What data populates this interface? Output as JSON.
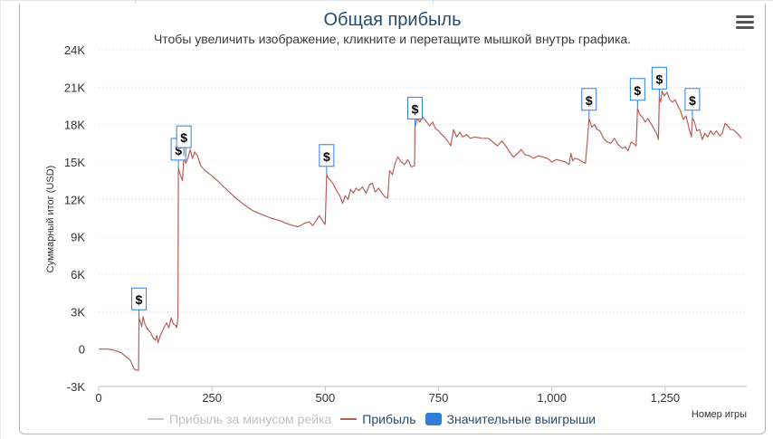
{
  "title": "Общая прибыль",
  "subtitle": "Чтобы увеличить изображение, кликните и перетащите мышкой внутрь графика.",
  "icons": {
    "menu": "hamburger-menu-icon",
    "marker": "dollar-sign"
  },
  "colors": {
    "profit": "#b5605c",
    "rake": "#c8c8c8",
    "wins": "#2f7ed8",
    "grid": "#d0d0d0",
    "title": "#274b6d",
    "marker_border": "#2f7ed8"
  },
  "chart_data": {
    "type": "line",
    "title": "Общая прибыль",
    "subtitle": "Чтобы увеличить изображение, кликните и перетащите мышкой внутрь графика.",
    "xlabel": "Номер игры",
    "ylabel": "Суммарный итог (USD)",
    "xlim": [
      0,
      1430
    ],
    "ylim": [
      -3000,
      24000
    ],
    "xticks": [
      0,
      250,
      500,
      750,
      1000,
      1250
    ],
    "xtick_labels": [
      "0",
      "250",
      "500",
      "750",
      "1,000",
      "1,250"
    ],
    "yticks": [
      -3000,
      0,
      3000,
      6000,
      9000,
      12000,
      15000,
      18000,
      21000,
      24000
    ],
    "ytick_labels": [
      "-3K",
      "0",
      "3K",
      "6K",
      "9K",
      "12K",
      "15K",
      "18K",
      "21K",
      "24K"
    ],
    "grid": true,
    "legend_position": "bottom",
    "legend": [
      {
        "name": "Прибыль за минусом рейка",
        "visible": false
      },
      {
        "name": "Прибыль",
        "visible": true
      },
      {
        "name": "Значительные выигрыши",
        "visible": true
      }
    ],
    "series": [
      {
        "name": "Прибыль",
        "points": [
          [
            0,
            0
          ],
          [
            10,
            0
          ],
          [
            20,
            0
          ],
          [
            30,
            -50
          ],
          [
            40,
            -150
          ],
          [
            50,
            -300
          ],
          [
            60,
            -600
          ],
          [
            70,
            -900
          ],
          [
            78,
            -1600
          ],
          [
            85,
            -1700
          ],
          [
            88,
            -1700
          ],
          [
            89,
            2500
          ],
          [
            92,
            2200
          ],
          [
            95,
            1800
          ],
          [
            98,
            2600
          ],
          [
            102,
            2000
          ],
          [
            108,
            1600
          ],
          [
            115,
            1300
          ],
          [
            120,
            900
          ],
          [
            125,
            700
          ],
          [
            128,
            1100
          ],
          [
            131,
            500
          ],
          [
            135,
            1000
          ],
          [
            140,
            1400
          ],
          [
            145,
            1800
          ],
          [
            150,
            2100
          ],
          [
            155,
            1700
          ],
          [
            160,
            2500
          ],
          [
            165,
            2000
          ],
          [
            170,
            1900
          ],
          [
            172,
            1700
          ],
          [
            175,
            2500
          ],
          [
            176,
            14500
          ],
          [
            180,
            14000
          ],
          [
            185,
            13500
          ],
          [
            188,
            15500
          ],
          [
            192,
            14900
          ],
          [
            197,
            15300
          ],
          [
            202,
            16000
          ],
          [
            207,
            15300
          ],
          [
            212,
            15800
          ],
          [
            218,
            15500
          ],
          [
            225,
            14700
          ],
          [
            235,
            14300
          ],
          [
            250,
            13900
          ],
          [
            265,
            13400
          ],
          [
            285,
            12700
          ],
          [
            300,
            12200
          ],
          [
            320,
            11600
          ],
          [
            340,
            11100
          ],
          [
            360,
            10800
          ],
          [
            380,
            10500
          ],
          [
            400,
            10300
          ],
          [
            420,
            10000
          ],
          [
            440,
            9800
          ],
          [
            455,
            10100
          ],
          [
            465,
            10200
          ],
          [
            472,
            9900
          ],
          [
            480,
            10300
          ],
          [
            487,
            10700
          ],
          [
            492,
            10400
          ],
          [
            496,
            10200
          ],
          [
            500,
            10000
          ],
          [
            503,
            14000
          ],
          [
            507,
            13700
          ],
          [
            512,
            13500
          ],
          [
            518,
            13200
          ],
          [
            525,
            12700
          ],
          [
            532,
            12300
          ],
          [
            538,
            11700
          ],
          [
            544,
            12300
          ],
          [
            550,
            12000
          ],
          [
            556,
            12800
          ],
          [
            562,
            12500
          ],
          [
            568,
            12900
          ],
          [
            574,
            12700
          ],
          [
            582,
            13000
          ],
          [
            590,
            12500
          ],
          [
            598,
            13200
          ],
          [
            604,
            13300
          ],
          [
            610,
            12600
          ],
          [
            618,
            12900
          ],
          [
            625,
            12500
          ],
          [
            632,
            12200
          ],
          [
            638,
            12100
          ],
          [
            642,
            14300
          ],
          [
            648,
            14000
          ],
          [
            654,
            14900
          ],
          [
            660,
            15400
          ],
          [
            668,
            15000
          ],
          [
            675,
            14800
          ],
          [
            682,
            15200
          ],
          [
            690,
            14600
          ],
          [
            697,
            14700
          ],
          [
            698,
            17800
          ],
          [
            703,
            18500
          ],
          [
            708,
            18200
          ],
          [
            715,
            18600
          ],
          [
            722,
            18300
          ],
          [
            730,
            17900
          ],
          [
            737,
            18200
          ],
          [
            743,
            17700
          ],
          [
            750,
            17500
          ],
          [
            757,
            17200
          ],
          [
            763,
            17000
          ],
          [
            770,
            16700
          ],
          [
            777,
            16300
          ],
          [
            783,
            17600
          ],
          [
            790,
            17000
          ],
          [
            797,
            17400
          ],
          [
            803,
            17000
          ],
          [
            812,
            17200
          ],
          [
            820,
            16900
          ],
          [
            830,
            17000
          ],
          [
            845,
            16900
          ],
          [
            860,
            16900
          ],
          [
            870,
            16600
          ],
          [
            880,
            16300
          ],
          [
            890,
            16700
          ],
          [
            898,
            16300
          ],
          [
            905,
            15900
          ],
          [
            915,
            15400
          ],
          [
            925,
            15700
          ],
          [
            932,
            16000
          ],
          [
            940,
            15600
          ],
          [
            950,
            15500
          ],
          [
            960,
            15300
          ],
          [
            970,
            15500
          ],
          [
            980,
            15400
          ],
          [
            990,
            15300
          ],
          [
            1000,
            15000
          ],
          [
            1010,
            15200
          ],
          [
            1020,
            15100
          ],
          [
            1030,
            15000
          ],
          [
            1038,
            14800
          ],
          [
            1042,
            15700
          ],
          [
            1046,
            15100
          ],
          [
            1050,
            15300
          ],
          [
            1060,
            15200
          ],
          [
            1068,
            15000
          ],
          [
            1074,
            14900
          ],
          [
            1078,
            16600
          ],
          [
            1082,
            18500
          ],
          [
            1088,
            17800
          ],
          [
            1094,
            18000
          ],
          [
            1100,
            17600
          ],
          [
            1106,
            17500
          ],
          [
            1114,
            16900
          ],
          [
            1122,
            16600
          ],
          [
            1130,
            16500
          ],
          [
            1138,
            16900
          ],
          [
            1146,
            16400
          ],
          [
            1155,
            16100
          ],
          [
            1162,
            16200
          ],
          [
            1168,
            15900
          ],
          [
            1175,
            16600
          ],
          [
            1180,
            16500
          ],
          [
            1186,
            16300
          ],
          [
            1189,
            19300
          ],
          [
            1194,
            18800
          ],
          [
            1200,
            18600
          ],
          [
            1206,
            18200
          ],
          [
            1212,
            18500
          ],
          [
            1220,
            18000
          ],
          [
            1226,
            17600
          ],
          [
            1232,
            17200
          ],
          [
            1235,
            16800
          ],
          [
            1237,
            20200
          ],
          [
            1240,
            19800
          ],
          [
            1243,
            20700
          ],
          [
            1248,
            20300
          ],
          [
            1254,
            20600
          ],
          [
            1260,
            20000
          ],
          [
            1266,
            19800
          ],
          [
            1272,
            20000
          ],
          [
            1278,
            19500
          ],
          [
            1284,
            19100
          ],
          [
            1290,
            18400
          ],
          [
            1296,
            18700
          ],
          [
            1302,
            17800
          ],
          [
            1308,
            17000
          ],
          [
            1310,
            18500
          ],
          [
            1314,
            18300
          ],
          [
            1320,
            17500
          ],
          [
            1326,
            17600
          ],
          [
            1332,
            16800
          ],
          [
            1338,
            17300
          ],
          [
            1344,
            17000
          ],
          [
            1350,
            17500
          ],
          [
            1357,
            17200
          ],
          [
            1363,
            17500
          ],
          [
            1370,
            17100
          ],
          [
            1376,
            17300
          ],
          [
            1382,
            18100
          ],
          [
            1388,
            17900
          ],
          [
            1394,
            17600
          ],
          [
            1400,
            17600
          ],
          [
            1406,
            17400
          ],
          [
            1412,
            17200
          ],
          [
            1418,
            16900
          ]
        ]
      }
    ],
    "big_wins": [
      [
        89,
        2500
      ],
      [
        176,
        14500
      ],
      [
        188,
        15500
      ],
      [
        503,
        14000
      ],
      [
        698,
        17800
      ],
      [
        1082,
        18500
      ],
      [
        1189,
        19300
      ],
      [
        1237,
        20200
      ],
      [
        1310,
        18500
      ]
    ]
  }
}
